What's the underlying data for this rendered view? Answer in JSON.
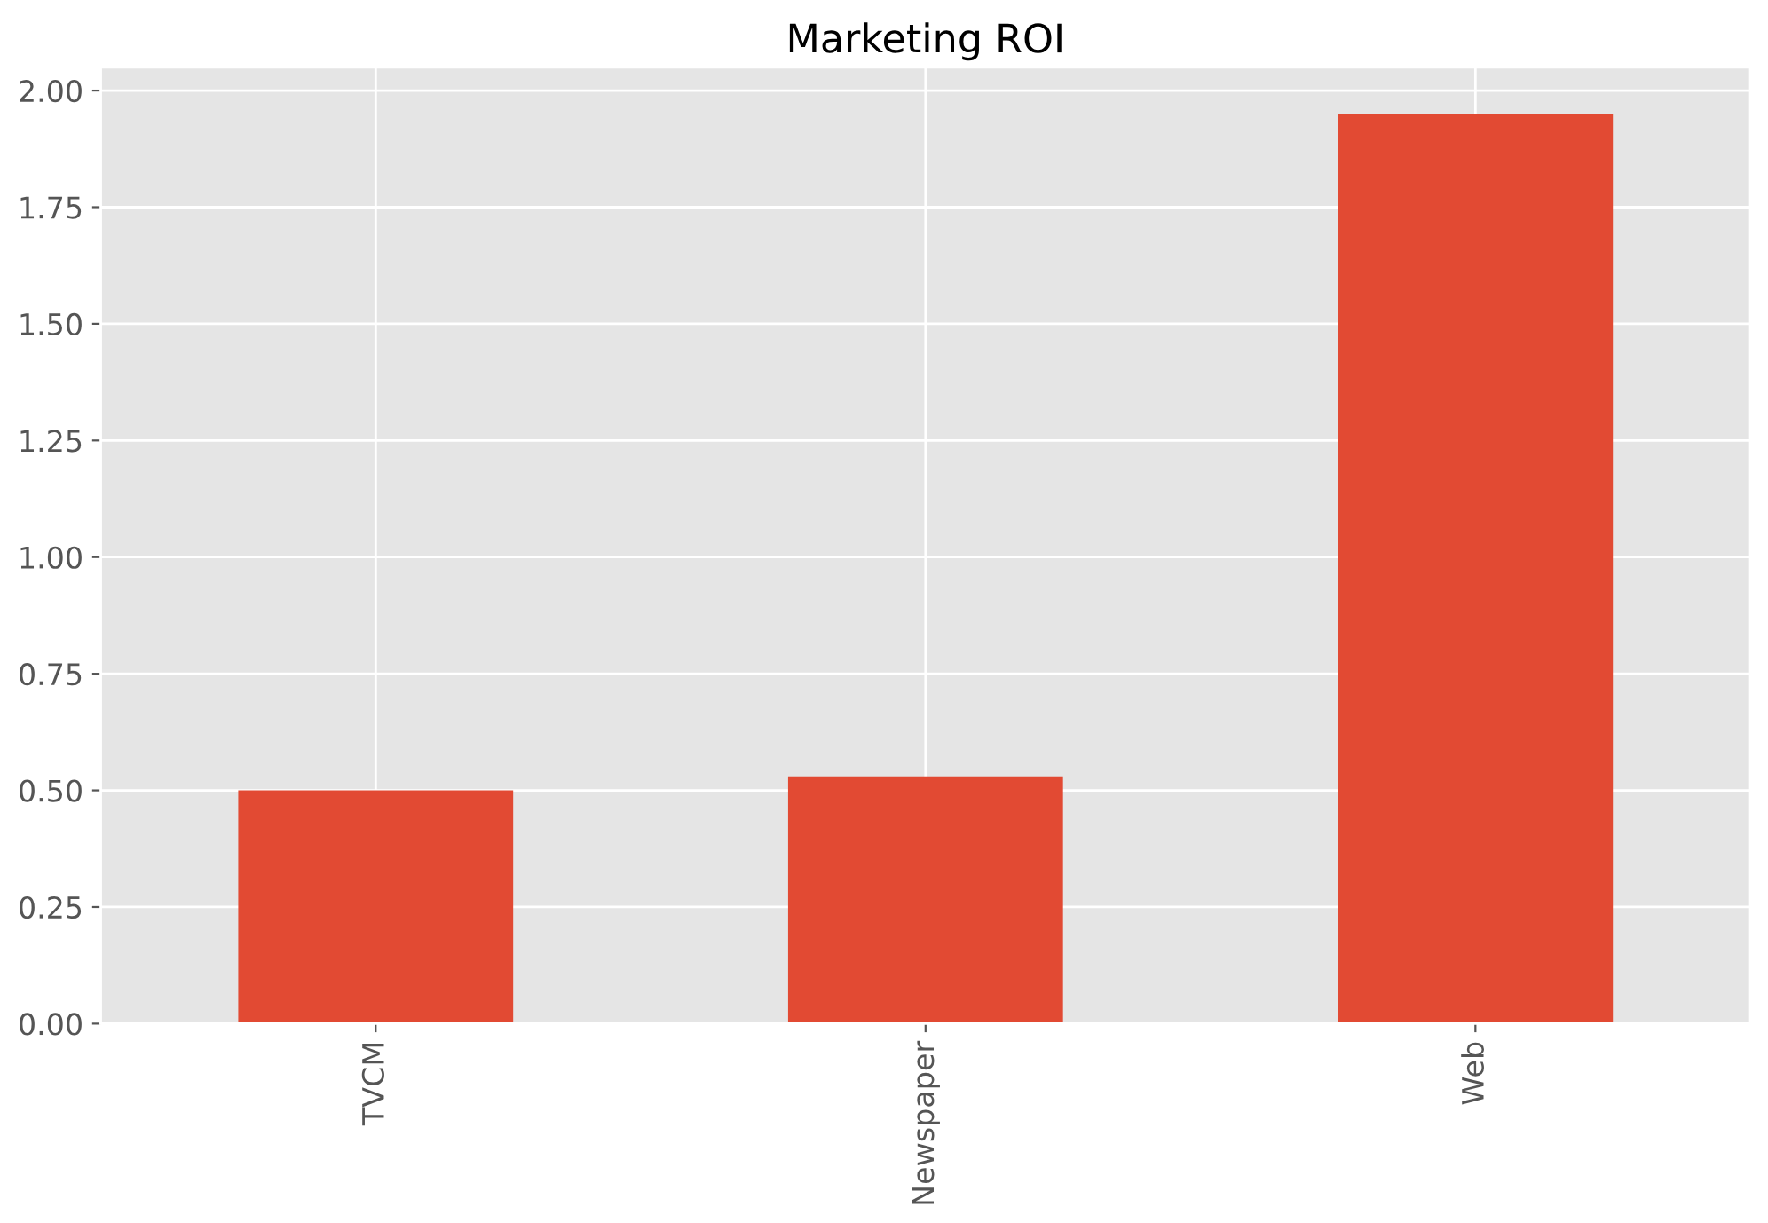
{
  "chart_data": {
    "type": "bar",
    "title": "Marketing ROI",
    "categories": [
      "TVCM",
      "Newspaper",
      "Web"
    ],
    "values": [
      0.5,
      0.53,
      1.95
    ],
    "color": "#e24a33",
    "ylim": [
      0,
      2.05
    ],
    "yticks": [
      {
        "value": 0,
        "label": "0.00"
      },
      {
        "value": 0.25,
        "label": "0.25"
      },
      {
        "value": 0.5,
        "label": "0.50"
      },
      {
        "value": 0.75,
        "label": "0.75"
      },
      {
        "value": 1.0,
        "label": "1.00"
      },
      {
        "value": 1.25,
        "label": "1.25"
      },
      {
        "value": 1.5,
        "label": "1.50"
      },
      {
        "value": 1.75,
        "label": "1.75"
      },
      {
        "value": 2.0,
        "label": "2.00"
      }
    ],
    "grid": true,
    "legend": false
  }
}
